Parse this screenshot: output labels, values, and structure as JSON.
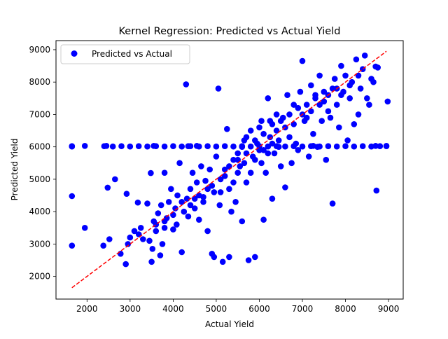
{
  "chart_data": {
    "type": "scatter",
    "title": "Kernel Regression: Predicted vs Actual Yield",
    "xlabel": "Actual Yield",
    "ylabel": "Predicted Yield",
    "xlim": [
      1280,
      9340
    ],
    "ylim": [
      1300,
      9280
    ],
    "xticks": [
      2000,
      3000,
      4000,
      5000,
      6000,
      7000,
      8000,
      9000
    ],
    "yticks": [
      2000,
      3000,
      4000,
      5000,
      6000,
      7000,
      8000,
      9000
    ],
    "grid": false,
    "legend": {
      "position": "top-left",
      "entries": [
        "Predicted vs Actual"
      ]
    },
    "colors": {
      "points": "#0000ff",
      "reference_line": "#ff0000"
    },
    "series": [
      {
        "name": "Predicted vs Actual",
        "kind": "scatter",
        "points": [
          [
            1650,
            6020
          ],
          [
            1650,
            4480
          ],
          [
            1650,
            2950
          ],
          [
            1950,
            6030
          ],
          [
            1950,
            3500
          ],
          [
            2380,
            2950
          ],
          [
            2450,
            6030
          ],
          [
            2480,
            4740
          ],
          [
            2520,
            3150
          ],
          [
            2650,
            5000
          ],
          [
            2780,
            2700
          ],
          [
            2900,
            2380
          ],
          [
            2920,
            4550
          ],
          [
            2950,
            3000
          ],
          [
            3000,
            3200
          ],
          [
            3100,
            3400
          ],
          [
            3180,
            4280
          ],
          [
            3200,
            3300
          ],
          [
            3250,
            3500
          ],
          [
            3300,
            3150
          ],
          [
            3400,
            4250
          ],
          [
            3450,
            3100
          ],
          [
            3480,
            5190
          ],
          [
            3500,
            2450
          ],
          [
            3520,
            2850
          ],
          [
            3550,
            3700
          ],
          [
            3600,
            3400
          ],
          [
            3650,
            3950
          ],
          [
            3700,
            2650
          ],
          [
            3720,
            4200
          ],
          [
            3750,
            3000
          ],
          [
            3800,
            5200
          ],
          [
            3800,
            3500
          ],
          [
            3850,
            3800
          ],
          [
            3900,
            4300
          ],
          [
            3950,
            4700
          ],
          [
            4000,
            3450
          ],
          [
            4050,
            4100
          ],
          [
            4080,
            3600
          ],
          [
            4100,
            4500
          ],
          [
            4150,
            5500
          ],
          [
            4200,
            2750
          ],
          [
            4250,
            4000
          ],
          [
            4300,
            7930
          ],
          [
            4320,
            4400
          ],
          [
            4350,
            3850
          ],
          [
            4400,
            4700
          ],
          [
            4450,
            5200
          ],
          [
            4500,
            4100
          ],
          [
            4550,
            4900
          ],
          [
            4600,
            3750
          ],
          [
            4650,
            5400
          ],
          [
            4700,
            4450
          ],
          [
            4750,
            4950
          ],
          [
            4800,
            3400
          ],
          [
            4850,
            5300
          ],
          [
            4900,
            2700
          ],
          [
            4950,
            2600
          ],
          [
            4950,
            4600
          ],
          [
            5000,
            5700
          ],
          [
            5050,
            7800
          ],
          [
            5080,
            4200
          ],
          [
            5100,
            5000
          ],
          [
            5150,
            2450
          ],
          [
            5200,
            5300
          ],
          [
            5250,
            6550
          ],
          [
            5300,
            2600
          ],
          [
            5350,
            4000
          ],
          [
            5400,
            5600
          ],
          [
            5450,
            4300
          ],
          [
            5500,
            5800
          ],
          [
            5550,
            5400
          ],
          [
            5600,
            3700
          ],
          [
            5650,
            6200
          ],
          [
            5700,
            4900
          ],
          [
            5750,
            2500
          ],
          [
            5800,
            6500
          ],
          [
            5850,
            5700
          ],
          [
            5900,
            2600
          ],
          [
            5950,
            6100
          ],
          [
            6000,
            5900
          ],
          [
            6050,
            6800
          ],
          [
            6100,
            3750
          ],
          [
            6150,
            5200
          ],
          [
            6200,
            7500
          ],
          [
            6250,
            6300
          ],
          [
            6300,
            4400
          ],
          [
            6350,
            5800
          ],
          [
            6400,
            7000
          ],
          [
            6450,
            6200
          ],
          [
            6500,
            5400
          ],
          [
            6550,
            6900
          ],
          [
            6600,
            4750
          ],
          [
            6650,
            7600
          ],
          [
            6700,
            6300
          ],
          [
            6750,
            5500
          ],
          [
            6800,
            7300
          ],
          [
            6850,
            6100
          ],
          [
            6900,
            5900
          ],
          [
            6950,
            7700
          ],
          [
            7000,
            8650
          ],
          [
            7050,
            6800
          ],
          [
            7100,
            7300
          ],
          [
            7150,
            5700
          ],
          [
            7200,
            7900
          ],
          [
            7250,
            6400
          ],
          [
            7300,
            7500
          ],
          [
            7350,
            6000
          ],
          [
            7400,
            8200
          ],
          [
            7450,
            6800
          ],
          [
            7500,
            7700
          ],
          [
            7550,
            5600
          ],
          [
            7600,
            7100
          ],
          [
            7650,
            6900
          ],
          [
            7700,
            4250
          ],
          [
            7750,
            8100
          ],
          [
            7800,
            7300
          ],
          [
            7850,
            6600
          ],
          [
            7900,
            8500
          ],
          [
            7950,
            7700
          ],
          [
            8000,
            8200
          ],
          [
            8050,
            6200
          ],
          [
            8100,
            7500
          ],
          [
            8150,
            8000
          ],
          [
            8200,
            6700
          ],
          [
            8250,
            8700
          ],
          [
            8300,
            7000
          ],
          [
            8350,
            7800
          ],
          [
            8400,
            8400
          ],
          [
            8450,
            8820
          ],
          [
            8500,
            7500
          ],
          [
            8550,
            7300
          ],
          [
            8600,
            8100
          ],
          [
            8650,
            8000
          ],
          [
            8700,
            8480
          ],
          [
            8720,
            4650
          ],
          [
            8750,
            8450
          ],
          [
            8950,
            6030
          ],
          [
            8980,
            7400
          ],
          [
            5600,
            6000
          ],
          [
            5700,
            6300
          ],
          [
            5500,
            5200
          ],
          [
            5900,
            5600
          ],
          [
            6100,
            6400
          ],
          [
            6300,
            6700
          ],
          [
            5300,
            4700
          ],
          [
            5800,
            5200
          ],
          [
            6000,
            6600
          ],
          [
            6200,
            5800
          ],
          [
            6400,
            6500
          ],
          [
            4800,
            4700
          ],
          [
            5200,
            5100
          ],
          [
            5400,
            4900
          ],
          [
            5650,
            5500
          ],
          [
            6050,
            5500
          ],
          [
            6250,
            6800
          ],
          [
            6450,
            6000
          ],
          [
            6600,
            6600
          ],
          [
            6800,
            6700
          ],
          [
            7000,
            7000
          ],
          [
            7200,
            7100
          ],
          [
            7400,
            7300
          ],
          [
            7600,
            7600
          ],
          [
            7800,
            7800
          ],
          [
            4600,
            4500
          ],
          [
            4400,
            4200
          ],
          [
            4200,
            4300
          ],
          [
            4000,
            3900
          ],
          [
            3800,
            3700
          ],
          [
            3600,
            3600
          ],
          [
            4500,
            4400
          ],
          [
            4700,
            4300
          ],
          [
            4900,
            4800
          ],
          [
            5100,
            4600
          ],
          [
            5300,
            5400
          ],
          [
            5500,
            5600
          ],
          [
            5700,
            5800
          ],
          [
            5900,
            6200
          ],
          [
            6100,
            5900
          ],
          [
            6300,
            6100
          ],
          [
            6500,
            6800
          ],
          [
            6700,
            7000
          ],
          [
            6900,
            7200
          ],
          [
            7100,
            6900
          ],
          [
            7300,
            7600
          ],
          [
            7500,
            7400
          ],
          [
            7700,
            7800
          ],
          [
            7900,
            7600
          ],
          [
            8100,
            7900
          ],
          [
            8300,
            8200
          ],
          [
            1650,
            6010
          ],
          [
            2400,
            6020
          ],
          [
            2600,
            6010
          ],
          [
            2800,
            6020
          ],
          [
            3000,
            6010
          ],
          [
            3200,
            6020
          ],
          [
            3400,
            6010
          ],
          [
            3600,
            6020
          ],
          [
            3800,
            6010
          ],
          [
            4000,
            6020
          ],
          [
            4200,
            6010
          ],
          [
            4400,
            6020
          ],
          [
            4600,
            6010
          ],
          [
            4800,
            6020
          ],
          [
            5000,
            6010
          ],
          [
            5200,
            6020
          ],
          [
            5400,
            6010
          ],
          [
            5600,
            6020
          ],
          [
            5800,
            6010
          ],
          [
            6000,
            6020
          ],
          [
            6200,
            6010
          ],
          [
            6400,
            6020
          ],
          [
            6600,
            6010
          ],
          [
            6800,
            6020
          ],
          [
            7000,
            6010
          ],
          [
            7200,
            6020
          ],
          [
            7400,
            6010
          ],
          [
            7600,
            6020
          ],
          [
            7800,
            6010
          ],
          [
            8000,
            6020
          ],
          [
            8200,
            6010
          ],
          [
            8400,
            6020
          ],
          [
            8600,
            6010
          ],
          [
            8800,
            6020
          ],
          [
            8950,
            6020
          ],
          [
            4350,
            6020
          ],
          [
            4550,
            6030
          ],
          [
            3550,
            6030
          ],
          [
            7250,
            6030
          ],
          [
            8700,
            6030
          ]
        ]
      },
      {
        "name": "",
        "kind": "line",
        "style": "dashed",
        "points": [
          [
            1650,
            1650
          ],
          [
            8950,
            8950
          ]
        ]
      }
    ]
  }
}
